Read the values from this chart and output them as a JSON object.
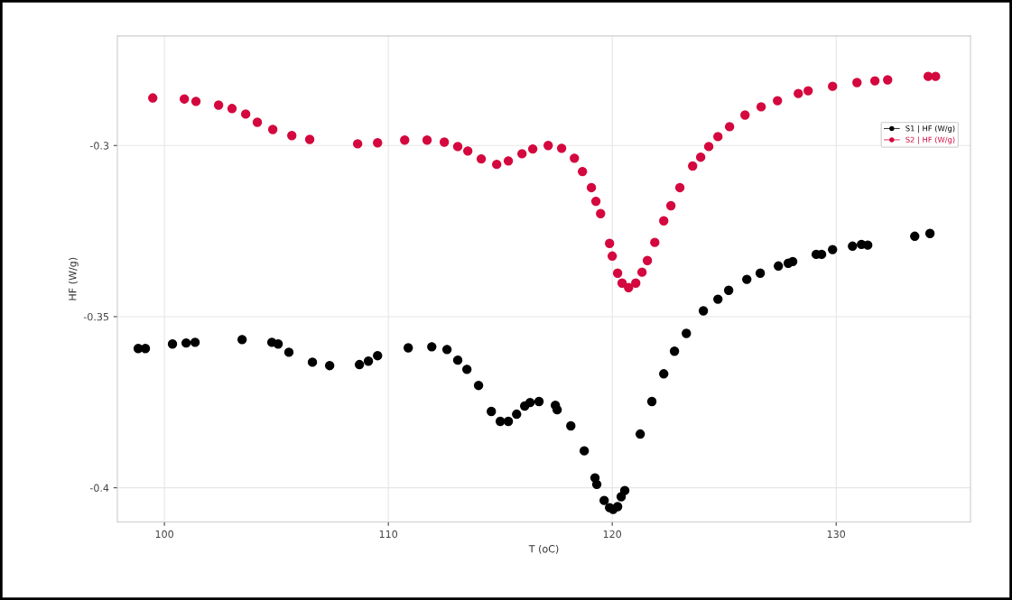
{
  "chart_data": {
    "type": "scatter",
    "xlabel": "T (oC)",
    "ylabel": "HF (W/g)",
    "xlim": [
      97.9,
      136.0
    ],
    "xticks": [
      100,
      110,
      120,
      130
    ],
    "ylim": [
      -0.41,
      -0.268
    ],
    "yticks": [
      -0.4,
      -0.35,
      -0.3
    ],
    "grid": true,
    "legend": "top right",
    "marker": "circle",
    "series": [
      {
        "name": "S1 | HF (W/g)",
        "color": "#000000",
        "x": [
          98.83,
          99.15,
          100.36,
          100.97,
          101.37,
          103.47,
          104.8,
          105.08,
          105.56,
          106.61,
          107.38,
          108.71,
          109.11,
          109.52,
          110.89,
          111.94,
          112.62,
          113.1,
          113.51,
          114.03,
          114.6,
          115.0,
          115.36,
          115.73,
          116.09,
          116.33,
          116.73,
          117.46,
          117.54,
          118.15,
          118.75,
          119.23,
          119.31,
          119.64,
          119.88,
          120.04,
          120.24,
          120.4,
          120.56,
          121.25,
          121.77,
          122.3,
          122.78,
          123.31,
          124.07,
          124.72,
          125.2,
          126.01,
          126.61,
          127.42,
          127.86,
          128.06,
          129.11,
          129.35,
          129.84,
          130.73,
          131.13,
          131.41,
          133.51,
          134.19
        ],
        "values": [
          -0.3593,
          -0.3593,
          -0.358,
          -0.3577,
          -0.3575,
          -0.3567,
          -0.3575,
          -0.358,
          -0.3604,
          -0.3633,
          -0.3643,
          -0.364,
          -0.363,
          -0.3614,
          -0.3591,
          -0.3588,
          -0.3596,
          -0.3627,
          -0.3654,
          -0.3701,
          -0.3777,
          -0.3806,
          -0.3806,
          -0.3785,
          -0.3761,
          -0.3751,
          -0.3748,
          -0.3759,
          -0.3772,
          -0.3819,
          -0.3892,
          -0.3971,
          -0.399,
          -0.4037,
          -0.4058,
          -0.4063,
          -0.4055,
          -0.4026,
          -0.4008,
          -0.3843,
          -0.3748,
          -0.3667,
          -0.3601,
          -0.3549,
          -0.3483,
          -0.3449,
          -0.3423,
          -0.3391,
          -0.3373,
          -0.3352,
          -0.3344,
          -0.3339,
          -0.3318,
          -0.3318,
          -0.3304,
          -0.3294,
          -0.3289,
          -0.3291,
          -0.3265,
          -0.3257
        ]
      },
      {
        "name": "S2 | HF (W/g)",
        "color": "#d4083e",
        "x": [
          99.48,
          100.89,
          101.41,
          102.42,
          103.02,
          103.63,
          104.15,
          104.84,
          105.69,
          106.49,
          108.63,
          109.52,
          110.73,
          111.73,
          112.5,
          113.1,
          113.55,
          114.15,
          114.84,
          115.36,
          115.97,
          116.45,
          117.14,
          117.74,
          118.31,
          118.67,
          119.07,
          119.27,
          119.48,
          119.88,
          120.0,
          120.24,
          120.44,
          120.73,
          121.05,
          121.33,
          121.57,
          121.9,
          122.3,
          122.62,
          123.02,
          123.59,
          123.95,
          124.31,
          124.72,
          125.24,
          125.93,
          126.65,
          127.38,
          128.31,
          128.75,
          129.84,
          130.93,
          131.73,
          132.3,
          134.11,
          134.44
        ],
        "values": [
          -0.2861,
          -0.2864,
          -0.2871,
          -0.2882,
          -0.2892,
          -0.2908,
          -0.2932,
          -0.2953,
          -0.2971,
          -0.2982,
          -0.2995,
          -0.2992,
          -0.2984,
          -0.2984,
          -0.299,
          -0.3003,
          -0.3016,
          -0.3039,
          -0.3055,
          -0.3045,
          -0.3024,
          -0.301,
          -0.3,
          -0.3008,
          -0.3037,
          -0.3076,
          -0.3123,
          -0.3163,
          -0.3199,
          -0.3286,
          -0.3323,
          -0.3373,
          -0.3402,
          -0.3415,
          -0.3402,
          -0.337,
          -0.3336,
          -0.3283,
          -0.322,
          -0.3176,
          -0.3123,
          -0.306,
          -0.3034,
          -0.3003,
          -0.2974,
          -0.2945,
          -0.2911,
          -0.2887,
          -0.2869,
          -0.2848,
          -0.284,
          -0.2827,
          -0.2816,
          -0.2811,
          -0.2808,
          -0.2798,
          -0.2798
        ]
      }
    ]
  }
}
